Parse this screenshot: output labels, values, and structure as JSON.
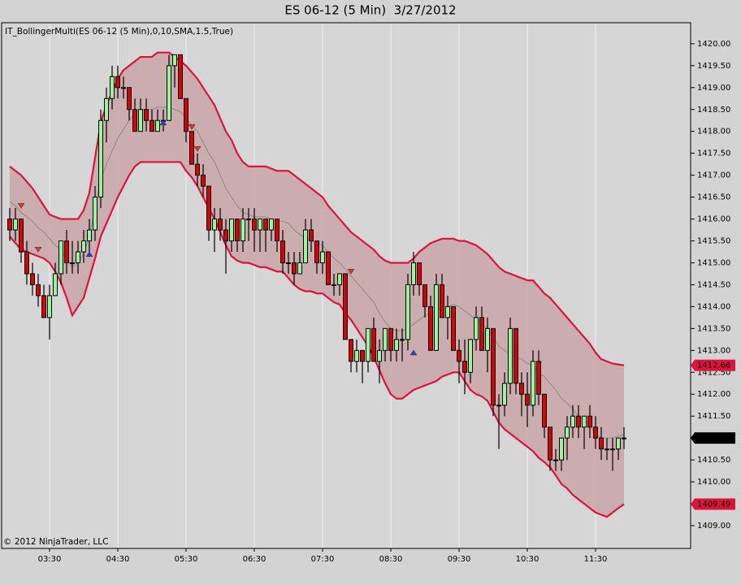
{
  "chart_data": {
    "type": "candlestick",
    "title": "ES 06-12 (5 Min)  3/27/2012",
    "indicator_label": "IT_BollingerMulti(ES 06-12 (5 Min),0,10,SMA,1.5,True)",
    "copyright": "© 2012 NinjaTrader, LLC",
    "categories": [
      null,
      null,
      null,
      null,
      null,
      null,
      null,
      "03:30",
      null,
      null,
      null,
      null,
      null,
      null,
      null,
      null,
      null,
      null,
      null,
      "04:30",
      null,
      null,
      null,
      null,
      null,
      null,
      null,
      null,
      null,
      null,
      null,
      "05:30",
      null,
      null,
      null,
      null,
      null,
      null,
      null,
      null,
      null,
      null,
      null,
      "06:30",
      null,
      null,
      null,
      null,
      null,
      null,
      null,
      null,
      null,
      null,
      null,
      "07:30",
      null,
      null,
      null,
      null,
      null,
      null,
      null,
      null,
      null,
      null,
      null,
      "08:30",
      null,
      null,
      null,
      null,
      null,
      null,
      null,
      null,
      null,
      null,
      null,
      "09:30",
      null,
      null,
      null,
      null,
      null,
      null,
      null,
      null,
      null,
      null,
      null,
      "10:30",
      null,
      null,
      null,
      null,
      null,
      null,
      null,
      null,
      null,
      null,
      null,
      "11:30",
      null,
      null,
      null,
      null,
      null
    ],
    "open": [
      1416,
      1415.75,
      1416,
      1415.25,
      1414.75,
      1414.5,
      1414.25,
      1413.75,
      1414.25,
      1414.75,
      1415.5,
      1415,
      1415,
      1415.25,
      1415.5,
      1415.75,
      1416.5,
      1418.25,
      1418.75,
      1419.25,
      1419,
      1419,
      1418.5,
      1418,
      1418.5,
      1418.25,
      1418,
      1418.25,
      1418.25,
      1419.5,
      1419.75,
      1418.75,
      1418,
      1417.25,
      1417,
      1416.75,
      1415.75,
      1416,
      1415.75,
      1415.5,
      1416,
      1415.5,
      1416,
      1416,
      1415.75,
      1416,
      1415.75,
      1416,
      1415.5,
      1415,
      1415,
      1414.75,
      1415,
      1415.75,
      1415.5,
      1415,
      1415.25,
      1414.5,
      1414.5,
      1414.75,
      1413.25,
      1412.75,
      1413,
      1412.75,
      1413.5,
      1412.75,
      1413,
      1413.5,
      1413,
      1413.25,
      1413.25,
      1414.5,
      1415,
      1414.5,
      1414,
      1413,
      1414.5,
      1413.75,
      1414,
      1413,
      1412.75,
      1412.5,
      1413.25,
      1413.75,
      1413,
      1413.5,
      1411.75,
      1411.75,
      1412.25,
      1413.5,
      1412.25,
      1412,
      1411.75,
      1412.75,
      1412,
      1411.25,
      1410.5,
      1410.5,
      1411,
      1411.25,
      1411.5,
      1411.25,
      1411.5,
      1411.25,
      1411,
      1410.75,
      1410.75,
      1410.75,
      1411
    ],
    "high": [
      1416.25,
      1416.25,
      1416,
      1415.5,
      1415,
      1414.75,
      1414.5,
      1414.5,
      1415,
      1415.5,
      1415.75,
      1415.5,
      1415.5,
      1415.75,
      1416,
      1416.75,
      1418.5,
      1419,
      1419.5,
      1419.5,
      1419.25,
      1419,
      1418.75,
      1418.75,
      1418.75,
      1418.5,
      1418.5,
      1418.5,
      1419.75,
      1419.75,
      1419.75,
      1418.75,
      1418,
      1417.5,
      1417.25,
      1416.75,
      1416.25,
      1416.25,
      1416,
      1416,
      1416,
      1416.25,
      1416.25,
      1416.25,
      1416,
      1416,
      1416,
      1416,
      1415.75,
      1415.25,
      1415.25,
      1415.25,
      1416,
      1416,
      1415.5,
      1415.5,
      1415.25,
      1414.75,
      1414.75,
      1414.75,
      1413.25,
      1413.25,
      1413,
      1413.5,
      1413.75,
      1413.25,
      1413.5,
      1413.5,
      1413.5,
      1413.5,
      1414.75,
      1415.25,
      1415,
      1414.5,
      1414.25,
      1414.75,
      1414.75,
      1414.25,
      1414,
      1413.25,
      1413.25,
      1413.25,
      1414,
      1414,
      1413.75,
      1413.5,
      1412,
      1412.5,
      1413.75,
      1413.5,
      1412.5,
      1412.5,
      1413,
      1413,
      1412,
      1411.25,
      1410.75,
      1411,
      1411.5,
      1411.75,
      1411.75,
      1411.5,
      1411.75,
      1411.5,
      1411.25,
      1411,
      1411,
      1411,
      1411.25
    ],
    "low": [
      1415.5,
      1415.5,
      1415,
      1414.5,
      1414.25,
      1414,
      1413.75,
      1413.25,
      1414.25,
      1414.5,
      1414.75,
      1414.75,
      1414.75,
      1415,
      1415.25,
      1415.5,
      1416.25,
      1417.75,
      1418.5,
      1418.75,
      1418.75,
      1418.25,
      1418,
      1418,
      1418,
      1418,
      1418,
      1418,
      1418.25,
      1419,
      1418.75,
      1417.75,
      1417.25,
      1416.75,
      1416.5,
      1415.5,
      1415.25,
      1415.5,
      1414.75,
      1415.25,
      1415.25,
      1415.25,
      1415.5,
      1415.25,
      1415.25,
      1415.25,
      1415.5,
      1415.25,
      1414.75,
      1414.75,
      1414.5,
      1414.75,
      1415,
      1415.25,
      1414.75,
      1414.75,
      1414.5,
      1414.25,
      1414.25,
      1413.25,
      1412.5,
      1412.5,
      1412.25,
      1412.5,
      1412.75,
      1412.25,
      1412.75,
      1412.75,
      1412.75,
      1412.75,
      1413,
      1414.25,
      1414.25,
      1413.75,
      1413,
      1413,
      1413.75,
      1413.25,
      1413,
      1412.25,
      1412,
      1412.25,
      1413,
      1413,
      1412.5,
      1411.5,
      1410.75,
      1411.5,
      1412,
      1412,
      1411.5,
      1411.25,
      1411.5,
      1411.75,
      1411,
      1410.25,
      1410.25,
      1410.25,
      1410.5,
      1411,
      1411,
      1410.75,
      1411,
      1410.75,
      1410.5,
      1410.5,
      1410.25,
      1410.5,
      1410.75
    ],
    "close": [
      1415.75,
      1416,
      1415.25,
      1414.75,
      1414.5,
      1414.25,
      1413.75,
      1414.25,
      1414.75,
      1415.5,
      1415,
      1415,
      1415.25,
      1415.5,
      1415.75,
      1416.5,
      1418.25,
      1418.75,
      1419.25,
      1419,
      1419,
      1418.5,
      1418,
      1418.5,
      1418.25,
      1418,
      1418.25,
      1418.25,
      1419.5,
      1419.75,
      1418.75,
      1418,
      1417.25,
      1417,
      1416.75,
      1415.75,
      1416,
      1415.75,
      1415.5,
      1416,
      1415.5,
      1416,
      1416,
      1415.75,
      1416,
      1415.75,
      1416,
      1415.5,
      1415,
      1415,
      1414.75,
      1415,
      1415.75,
      1415.5,
      1415,
      1415.25,
      1414.5,
      1414.5,
      1414.75,
      1413.25,
      1412.75,
      1413,
      1412.75,
      1413.5,
      1412.75,
      1413,
      1413.5,
      1413,
      1413.25,
      1413.25,
      1414.5,
      1415,
      1414.5,
      1414,
      1413,
      1414.5,
      1413.75,
      1414,
      1413,
      1412.75,
      1412.5,
      1413.25,
      1413.75,
      1413,
      1413.5,
      1411.75,
      1411.75,
      1412.25,
      1413.5,
      1412.25,
      1412,
      1411.75,
      1412.75,
      1412,
      1411.25,
      1410.5,
      1410.5,
      1411,
      1411.25,
      1411.5,
      1411.25,
      1411.5,
      1411.25,
      1411,
      1410.75,
      1410.75,
      1410.75,
      1411,
      1411
    ],
    "up_color": "#98f598",
    "down_color": "#d80000",
    "band_fill": "#c9a5a8",
    "upper_band": {
      "color": "#dc143c",
      "values": [
        1417.2,
        1417.1,
        1417.0,
        1416.85,
        1416.7,
        1416.5,
        1416.3,
        1416.1,
        1416.05,
        1416.0,
        1416.0,
        1416.0,
        1416.0,
        1416.2,
        1416.6,
        1417.4,
        1418.2,
        1418.6,
        1418.9,
        1419.2,
        1419.4,
        1419.5,
        1419.6,
        1419.7,
        1419.7,
        1419.7,
        1419.8,
        1419.8,
        1419.8,
        1419.7,
        1419.6,
        1419.5,
        1419.35,
        1419.2,
        1419.0,
        1418.8,
        1418.6,
        1418.3,
        1418.0,
        1417.8,
        1417.5,
        1417.3,
        1417.2,
        1417.2,
        1417.2,
        1417.2,
        1417.15,
        1417.1,
        1417.1,
        1417.1,
        1417.0,
        1416.9,
        1416.8,
        1416.7,
        1416.6,
        1416.5,
        1416.3,
        1416.15,
        1416.0,
        1415.85,
        1415.7,
        1415.6,
        1415.5,
        1415.4,
        1415.3,
        1415.15,
        1415.05,
        1415.0,
        1415.0,
        1415.0,
        1415.0,
        1415.1,
        1415.25,
        1415.35,
        1415.45,
        1415.5,
        1415.55,
        1415.55,
        1415.55,
        1415.5,
        1415.5,
        1415.45,
        1415.4,
        1415.3,
        1415.2,
        1415.05,
        1414.9,
        1414.8,
        1414.75,
        1414.7,
        1414.65,
        1414.6,
        1414.6,
        1414.45,
        1414.3,
        1414.2,
        1414.05,
        1413.9,
        1413.75,
        1413.6,
        1413.45,
        1413.3,
        1413.15,
        1412.95,
        1412.8,
        1412.75,
        1412.7,
        1412.68,
        1412.66
      ]
    },
    "middle_band": {
      "color": "#8c8c8c",
      "values": [
        1416.4,
        1416.3,
        1416.15,
        1416.05,
        1415.95,
        1415.8,
        1415.7,
        1415.55,
        1415.4,
        1415.3,
        1415.1,
        1414.9,
        1415.0,
        1415.2,
        1415.6,
        1416.25,
        1416.9,
        1417.25,
        1417.55,
        1417.85,
        1418.05,
        1418.25,
        1418.4,
        1418.5,
        1418.5,
        1418.5,
        1418.55,
        1418.55,
        1418.55,
        1418.5,
        1418.45,
        1418.3,
        1418.15,
        1418.0,
        1417.75,
        1417.5,
        1417.3,
        1417.0,
        1416.7,
        1416.5,
        1416.3,
        1416.15,
        1416.1,
        1416.05,
        1416.05,
        1416.05,
        1416.0,
        1415.95,
        1415.95,
        1415.9,
        1415.75,
        1415.65,
        1415.55,
        1415.5,
        1415.45,
        1415.4,
        1415.25,
        1415.1,
        1415.0,
        1414.85,
        1414.7,
        1414.55,
        1414.4,
        1414.25,
        1414.1,
        1413.85,
        1413.65,
        1413.5,
        1413.45,
        1413.45,
        1413.5,
        1413.6,
        1413.7,
        1413.8,
        1413.85,
        1413.9,
        1414.0,
        1414.0,
        1414.05,
        1414.0,
        1413.9,
        1413.8,
        1413.7,
        1413.6,
        1413.5,
        1413.3,
        1413.1,
        1413.0,
        1412.9,
        1412.85,
        1412.8,
        1412.7,
        1412.65,
        1412.5,
        1412.4,
        1412.25,
        1412.1,
        1411.9,
        1411.8,
        1411.65,
        1411.5,
        1411.4,
        1411.3,
        1411.1,
        1411.0,
        1411.0,
        1411.0,
        1411.05,
        1411.08
      ]
    },
    "lower_band": {
      "color": "#dc143c",
      "values": [
        1415.6,
        1415.45,
        1415.3,
        1415.25,
        1415.2,
        1415.15,
        1415.1,
        1415.0,
        1414.8,
        1414.55,
        1414.2,
        1413.8,
        1414.0,
        1414.2,
        1414.65,
        1415.1,
        1415.6,
        1415.9,
        1416.2,
        1416.5,
        1416.75,
        1417.0,
        1417.2,
        1417.3,
        1417.3,
        1417.3,
        1417.3,
        1417.3,
        1417.3,
        1417.3,
        1417.3,
        1417.1,
        1416.95,
        1416.75,
        1416.5,
        1416.25,
        1416.0,
        1415.7,
        1415.4,
        1415.15,
        1415.05,
        1415.0,
        1415.0,
        1414.95,
        1414.9,
        1414.9,
        1414.85,
        1414.8,
        1414.8,
        1414.65,
        1414.5,
        1414.4,
        1414.35,
        1414.35,
        1414.3,
        1414.3,
        1414.2,
        1414.1,
        1414.05,
        1413.85,
        1413.7,
        1413.5,
        1413.3,
        1413.1,
        1412.85,
        1412.55,
        1412.25,
        1412.0,
        1411.9,
        1411.9,
        1412.0,
        1412.1,
        1412.15,
        1412.2,
        1412.25,
        1412.3,
        1412.4,
        1412.45,
        1412.5,
        1412.5,
        1412.3,
        1412.1,
        1412.0,
        1411.95,
        1411.85,
        1411.6,
        1411.35,
        1411.2,
        1411.1,
        1411.0,
        1410.9,
        1410.8,
        1410.7,
        1410.55,
        1410.45,
        1410.33,
        1410.15,
        1409.95,
        1409.85,
        1409.7,
        1409.6,
        1409.5,
        1409.4,
        1409.3,
        1409.25,
        1409.2,
        1409.3,
        1409.4,
        1409.49
      ]
    },
    "signals": [
      {
        "bar": 2,
        "value": 1416.3,
        "direction": "down",
        "color": "#d83a2a"
      },
      {
        "bar": 5,
        "value": 1415.3,
        "direction": "down",
        "color": "#d83a2a"
      },
      {
        "bar": 14,
        "value": 1415.2,
        "direction": "up",
        "color": "#2a3ad8"
      },
      {
        "bar": 27,
        "value": 1418.2,
        "direction": "up",
        "color": "#2a3ad8"
      },
      {
        "bar": 32,
        "value": 1418.1,
        "direction": "down",
        "color": "#d83a2a"
      },
      {
        "bar": 33,
        "value": 1417.6,
        "direction": "down",
        "color": "#d83a2a"
      },
      {
        "bar": 60,
        "value": 1414.8,
        "direction": "down",
        "color": "#d83a2a"
      },
      {
        "bar": 71,
        "value": 1412.95,
        "direction": "up",
        "color": "#2a3ad8"
      }
    ],
    "price_labels": [
      {
        "value": 1412.66,
        "label": "1412.66",
        "color": "#dc143c"
      },
      {
        "value": 1411,
        "label": "1411.00",
        "color": "#000000"
      },
      {
        "value": 1409.49,
        "label": "1409.49",
        "color": "#dc143c"
      }
    ],
    "ylim": [
      1408.48,
      1420.48
    ],
    "yticks": [
      {
        "value": 1409,
        "label": "1409.00"
      },
      {
        "value": 1409.5,
        "label": "1409.50"
      },
      {
        "value": 1410,
        "label": "1410.00"
      },
      {
        "value": 1410.5,
        "label": "1410.50"
      },
      {
        "value": 1411,
        "label": "1411.00"
      },
      {
        "value": 1411.5,
        "label": "1411.50"
      },
      {
        "value": 1412,
        "label": "1412.00"
      },
      {
        "value": 1412.5,
        "label": "1412.50"
      },
      {
        "value": 1413,
        "label": "1413.00"
      },
      {
        "value": 1413.5,
        "label": "1413.50"
      },
      {
        "value": 1414,
        "label": "1414.00"
      },
      {
        "value": 1414.5,
        "label": "1414.50"
      },
      {
        "value": 1415,
        "label": "1415.00"
      },
      {
        "value": 1415.5,
        "label": "1415.50"
      },
      {
        "value": 1416,
        "label": "1416.00"
      },
      {
        "value": 1416.5,
        "label": "1416.50"
      },
      {
        "value": 1417,
        "label": "1417.00"
      },
      {
        "value": 1417.5,
        "label": "1417.50"
      },
      {
        "value": 1418,
        "label": "1418.00"
      },
      {
        "value": 1418.5,
        "label": "1418.50"
      },
      {
        "value": 1419,
        "label": "1419.00"
      },
      {
        "value": 1419.5,
        "label": "1419.50"
      },
      {
        "value": 1420,
        "label": "1420.00"
      }
    ],
    "grid": true
  }
}
